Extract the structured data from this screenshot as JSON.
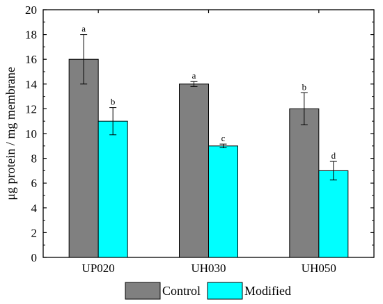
{
  "chart_data": {
    "type": "bar",
    "title": "",
    "xlabel": "",
    "ylabel": "μg protein / mg membrane",
    "ylim": [
      0,
      20
    ],
    "yticks": [
      0,
      2,
      4,
      6,
      8,
      10,
      12,
      14,
      16,
      18,
      20
    ],
    "categories": [
      "UP020",
      "UH030",
      "UH050"
    ],
    "series": [
      {
        "name": "Control",
        "color": "#808080",
        "values": [
          16,
          14,
          12
        ],
        "errors": [
          2.0,
          0.2,
          1.3
        ],
        "letters": [
          "a",
          "a",
          "b"
        ]
      },
      {
        "name": "Modified",
        "color": "#00FFFF",
        "values": [
          11,
          9,
          7
        ],
        "errors": [
          1.1,
          0.15,
          0.75
        ],
        "letters": [
          "b",
          "c",
          "d"
        ]
      }
    ],
    "legend_position": "bottom",
    "grid": false
  }
}
